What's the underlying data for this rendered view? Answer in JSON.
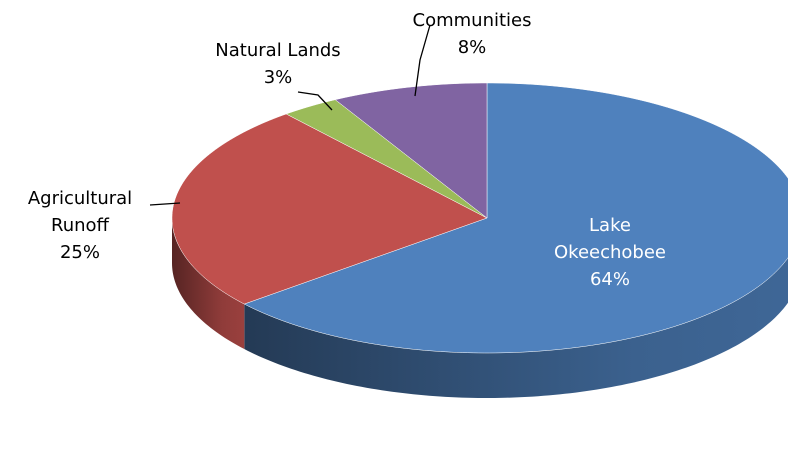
{
  "chart_data": {
    "type": "pie",
    "categories": [
      "Lake Okeechobee",
      "Agricultural Runoff",
      "Natural Lands",
      "Communities"
    ],
    "values": [
      64,
      25,
      3,
      8
    ],
    "value_labels": [
      "64%",
      "25%",
      "3%",
      "8%"
    ],
    "colors": [
      "#4f81bd",
      "#c0504d",
      "#9bbb59",
      "#8064a2"
    ]
  }
}
